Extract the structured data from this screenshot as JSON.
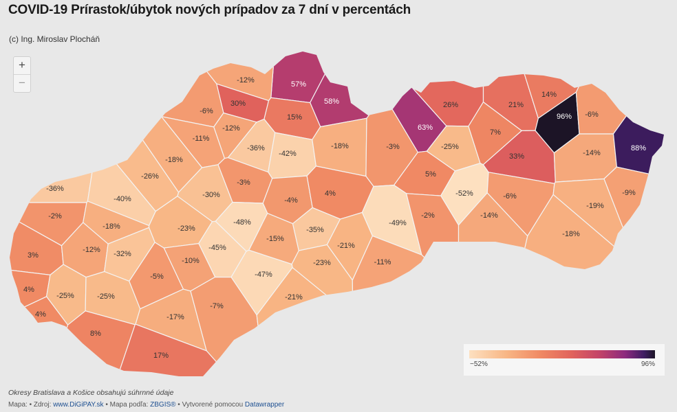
{
  "title": "COVID-19 Prírastok/úbytok nových prípadov za 7 dní v percentách",
  "subtitle": "(c) Ing. Miroslav Plocháň",
  "zoom": {
    "in_label": "+",
    "out_label": "−"
  },
  "legend": {
    "min_label": "−52%",
    "max_label": "96%"
  },
  "note": "Okresy Bratislava a Košice obsahujú súhrnné údaje",
  "footer": {
    "prefix": "Mapa: • Zdroj: ",
    "source_link": "www.DiGiPAY.sk",
    "mid": " • Mapa podľa: ",
    "map_link": "ZBGIS®",
    "mid2": " • Vytvorené pomocou ",
    "tool_link": "Datawrapper"
  },
  "colors": {
    "scale_low": "#fde0c0",
    "scale_mid": "#e1635c",
    "scale_high": "#1c1426"
  },
  "map_values": [
    {
      "label": "57%",
      "value": 57
    },
    {
      "label": "58%",
      "value": 58
    },
    {
      "label": "-12%",
      "value": -12
    },
    {
      "label": "30%",
      "value": 30
    },
    {
      "label": "-6%",
      "value": -6
    },
    {
      "label": "15%",
      "value": 15
    },
    {
      "label": "-12%",
      "value": -12
    },
    {
      "label": "-11%",
      "value": -11
    },
    {
      "label": "-36%",
      "value": -36
    },
    {
      "label": "-42%",
      "value": -42
    },
    {
      "label": "-18%",
      "value": -18
    },
    {
      "label": "-3%",
      "value": -3
    },
    {
      "label": "63%",
      "value": 63
    },
    {
      "label": "26%",
      "value": 26
    },
    {
      "label": "21%",
      "value": 21
    },
    {
      "label": "14%",
      "value": 14
    },
    {
      "label": "96%",
      "value": 96
    },
    {
      "label": "-6%",
      "value": -6
    },
    {
      "label": "7%",
      "value": 7
    },
    {
      "label": "-25%",
      "value": -25
    },
    {
      "label": "33%",
      "value": 33
    },
    {
      "label": "-14%",
      "value": -14
    },
    {
      "label": "88%",
      "value": 88
    },
    {
      "label": "-18%",
      "value": -18
    },
    {
      "label": "-26%",
      "value": -26
    },
    {
      "label": "-36%",
      "value": -36
    },
    {
      "label": "-40%",
      "value": -40
    },
    {
      "label": "-30%",
      "value": -30
    },
    {
      "label": "-3%",
      "value": -3
    },
    {
      "label": "-4%",
      "value": -4
    },
    {
      "label": "4%",
      "value": 4
    },
    {
      "label": "5%",
      "value": 5
    },
    {
      "label": "-52%",
      "value": -52
    },
    {
      "label": "-6%",
      "value": -6
    },
    {
      "label": "-9%",
      "value": -9
    },
    {
      "label": "-19%",
      "value": -19
    },
    {
      "label": "-2%",
      "value": -2
    },
    {
      "label": "-18%",
      "value": -18
    },
    {
      "label": "-23%",
      "value": -23
    },
    {
      "label": "-48%",
      "value": -48
    },
    {
      "label": "-49%",
      "value": -49
    },
    {
      "label": "-2%",
      "value": -2
    },
    {
      "label": "-14%",
      "value": -14
    },
    {
      "label": "-18%",
      "value": -18
    },
    {
      "label": "3%",
      "value": 3
    },
    {
      "label": "-12%",
      "value": -12
    },
    {
      "label": "-32%",
      "value": -32
    },
    {
      "label": "-45%",
      "value": -45
    },
    {
      "label": "-15%",
      "value": -15
    },
    {
      "label": "-35%",
      "value": -35
    },
    {
      "label": "-21%",
      "value": -21
    },
    {
      "label": "-10%",
      "value": -10
    },
    {
      "label": "-23%",
      "value": -23
    },
    {
      "label": "-11%",
      "value": -11
    },
    {
      "label": "4%",
      "value": 4
    },
    {
      "label": "-25%",
      "value": -25
    },
    {
      "label": "-25%",
      "value": -25
    },
    {
      "label": "-5%",
      "value": -5
    },
    {
      "label": "-47%",
      "value": -47
    },
    {
      "label": "4%",
      "value": 4
    },
    {
      "label": "-17%",
      "value": -17
    },
    {
      "label": "-7%",
      "value": -7
    },
    {
      "label": "-21%",
      "value": -21
    },
    {
      "label": "8%",
      "value": 8
    },
    {
      "label": "17%",
      "value": 17
    }
  ]
}
